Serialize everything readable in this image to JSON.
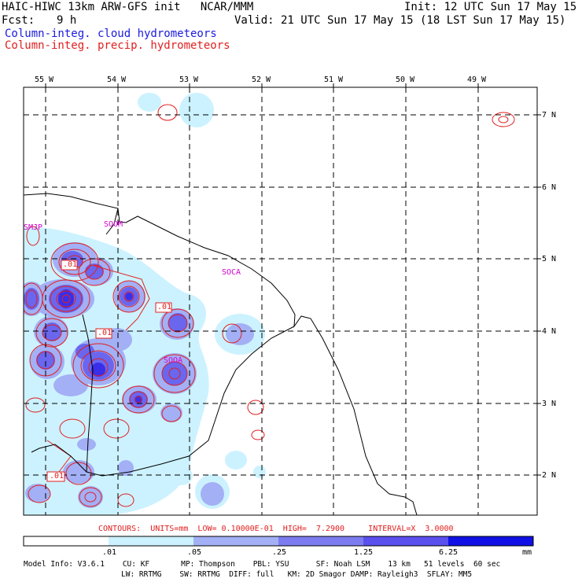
{
  "header": {
    "title_left": "HAIC-HIWC 13km ARW-GFS init   NCAR/MMM",
    "init": "Init: 12 UTC Sun 17 May 15",
    "fcst_label": "Fcst:",
    "fcst_value": "9 h",
    "valid": "Valid: 21 UTC Sun 17 May 15 (18 LST Sun 17 May 15)",
    "field1": "Column-integ. cloud hydrometeors",
    "field2": "Column-integ. precip. hydrometeors"
  },
  "axes": {
    "lon_labels": [
      "55 W",
      "54 W",
      "53 W",
      "52 W",
      "51 W",
      "50 W",
      "49 W"
    ],
    "lat_labels": [
      "7 N",
      "6 N",
      "5 N",
      "4 N",
      "3 N",
      "2 N"
    ]
  },
  "stations": [
    "SMJP",
    "SOOM",
    "SOCA",
    "SOOA"
  ],
  "contour_labels": [
    ".01",
    ".01",
    ".01",
    ".01"
  ],
  "contour_info": "CONTOURS:  UNITS=mm  LOW= 0.10000E-01  HIGH=  7.2900     INTERVAL=X  3.0000",
  "colorbar": {
    "unit": "mm",
    "ticks": [
      ".01",
      ".05",
      ".25",
      "1.25",
      "6.25"
    ],
    "colors": [
      "#ffffff",
      "#ccf2ff",
      "#a3b0f5",
      "#7c7cf0",
      "#5a50ee",
      "#1010e6"
    ]
  },
  "model_info": {
    "line1": "Model Info: V3.6.1    CU: KF       MP: Thompson    PBL: YSU      SF: Noah LSM    13 km   51 levels  60 sec",
    "line2": "LW: RRTMG    SW: RRTMG  DIFF: full   KM: 2D Smagor DAMP: Rayleigh3  SFLAY: MM5"
  },
  "colors": {
    "cloud_light": "#ccf2ff",
    "cloud_mid": "#a3b0f5",
    "cloud_dark": "#5a50ee",
    "precip_contour": "#e02020",
    "station": "#d000d0"
  }
}
